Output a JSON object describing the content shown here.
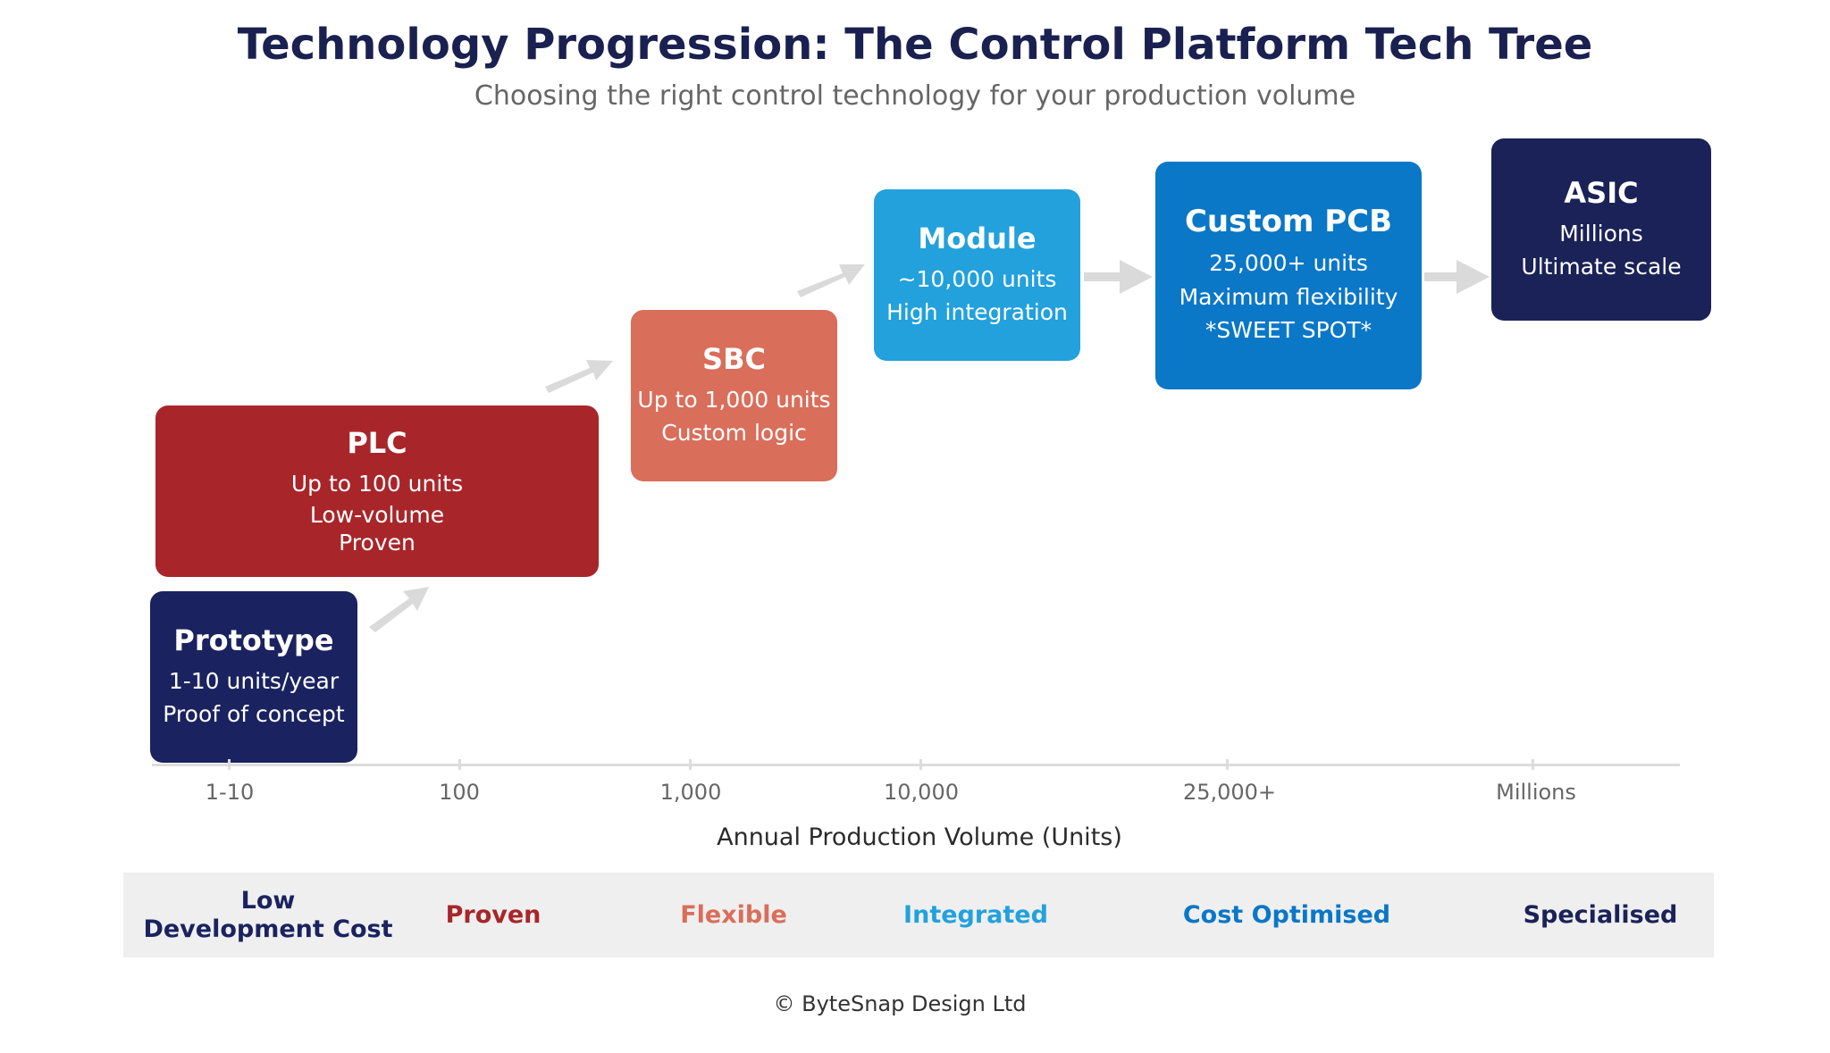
{
  "header": {
    "title": "Technology Progression: The Control Platform Tech Tree",
    "subtitle": "Choosing the right control technology for your production volume"
  },
  "colors": {
    "navy": "#1a2360",
    "deep_navy": "#1a2257",
    "red": "#a8262a",
    "salmon": "#d96e5a",
    "sky": "#22a1dc",
    "blue": "#0a77c7",
    "arrow": "#dadada"
  },
  "stages": [
    {
      "name": "Prototype",
      "lines": [
        "1-10 units/year",
        "Proof of concept"
      ],
      "color": "#1a2360"
    },
    {
      "name": "PLC",
      "lines": [
        "Up to 100 units",
        "Low-volume",
        "Proven"
      ],
      "color": "#a8262a"
    },
    {
      "name": "SBC",
      "lines": [
        "Up to 1,000 units",
        "Custom logic"
      ],
      "color": "#d96e5a"
    },
    {
      "name": "Module",
      "lines": [
        "~10,000 units",
        "High integration"
      ],
      "color": "#22a1dc"
    },
    {
      "name": "Custom PCB",
      "lines": [
        "25,000+ units",
        "Maximum flexibility",
        "*SWEET SPOT*"
      ],
      "color": "#0a77c7"
    },
    {
      "name": "ASIC",
      "lines": [
        "Millions",
        "Ultimate scale"
      ],
      "color": "#1a2257"
    }
  ],
  "axis": {
    "title": "Annual Production Volume (Units)",
    "ticks": [
      "1-10",
      "100",
      "1,000",
      "10,000",
      "25,000+",
      "Millions"
    ]
  },
  "attributes": [
    {
      "label": "Low\nDevelopment Cost",
      "color": "#1a2360"
    },
    {
      "label": "Proven",
      "color": "#a8262a"
    },
    {
      "label": "Flexible",
      "color": "#d96e5a"
    },
    {
      "label": "Integrated",
      "color": "#22a1dc"
    },
    {
      "label": "Cost Optimised",
      "color": "#0a77c7"
    },
    {
      "label": "Specialised",
      "color": "#1a2257"
    }
  ],
  "footer": {
    "copyright": "© ByteSnap Design Ltd"
  }
}
